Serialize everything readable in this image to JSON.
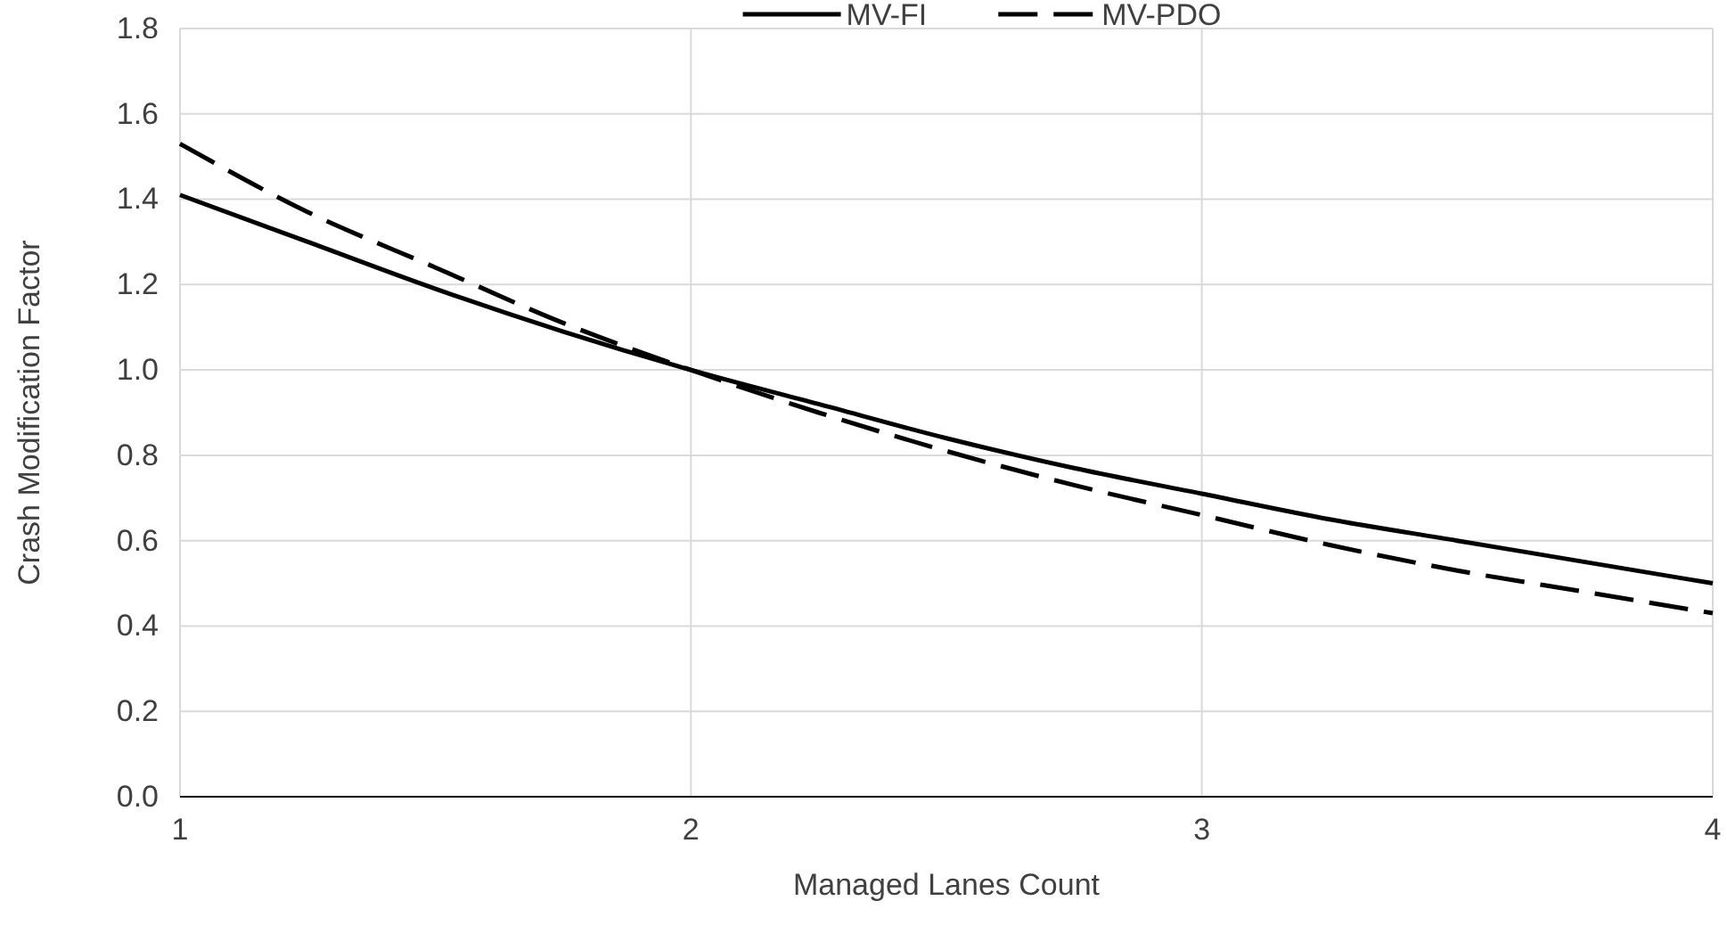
{
  "chart_data": {
    "type": "line",
    "xlabel": "Managed Lanes Count",
    "ylabel": "Crash Modification Factor",
    "x": [
      1,
      1.25,
      1.5,
      1.75,
      2,
      2.25,
      2.5,
      2.75,
      3,
      3.25,
      3.5,
      3.75,
      4
    ],
    "series": [
      {
        "name": "MV-FI",
        "color": "#000000",
        "line_style": "solid",
        "values": [
          1.41,
          1.3,
          1.19,
          1.09,
          1,
          0.92,
          0.84,
          0.77,
          0.71,
          0.65,
          0.6,
          0.55,
          0.5
        ]
      },
      {
        "name": "MV-PDO",
        "color": "#000000",
        "line_style": "dashed",
        "values": [
          1.53,
          1.37,
          1.24,
          1.11,
          1,
          0.9,
          0.81,
          0.73,
          0.66,
          0.59,
          0.53,
          0.48,
          0.43
        ]
      }
    ],
    "xlim": [
      1,
      4
    ],
    "xticks": [
      1,
      2,
      3,
      4
    ],
    "ylim": [
      0,
      1.8
    ],
    "yticks": [
      {
        "value": 0,
        "label": "0.0"
      },
      {
        "value": 0.2,
        "label": "0.2"
      },
      {
        "value": 0.4,
        "label": "0.4"
      },
      {
        "value": 0.6,
        "label": "0.6"
      },
      {
        "value": 0.8,
        "label": "0.8"
      },
      {
        "value": 1,
        "label": "1.0"
      },
      {
        "value": 1.2,
        "label": "1.2"
      },
      {
        "value": 1.4,
        "label": "1.4"
      },
      {
        "value": 1.6,
        "label": "1.6"
      },
      {
        "value": 1.8,
        "label": "1.8"
      }
    ],
    "grid": true,
    "legend": "top",
    "marker": "none"
  }
}
